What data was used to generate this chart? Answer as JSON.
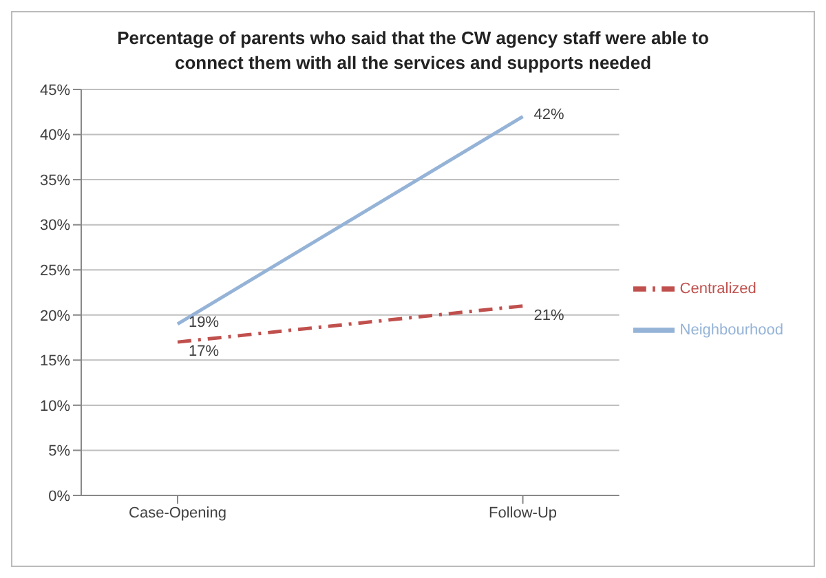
{
  "chart_data": {
    "type": "line",
    "title": "Percentage of parents who said that the CW agency staff were able to connect them with all the services and supports needed",
    "categories": [
      "Case-Opening",
      "Follow-Up"
    ],
    "series": [
      {
        "name": "Neighbourhood",
        "color": "#95b3d7",
        "values": [
          19,
          42
        ],
        "value_labels": [
          "19%",
          "42%"
        ],
        "line_style": "solid"
      },
      {
        "name": "Centralized",
        "color": "#c0504d",
        "values": [
          17,
          21
        ],
        "value_labels": [
          "17%",
          "21%"
        ],
        "line_style": "dashed"
      }
    ],
    "ylim": [
      0,
      45
    ],
    "yticks": [
      {
        "value": 0,
        "label": "0%"
      },
      {
        "value": 5,
        "label": "5%"
      },
      {
        "value": 10,
        "label": "10%"
      },
      {
        "value": 15,
        "label": "15%"
      },
      {
        "value": 20,
        "label": "20%"
      },
      {
        "value": 25,
        "label": "25%"
      },
      {
        "value": 30,
        "label": "30%"
      },
      {
        "value": 35,
        "label": "35%"
      },
      {
        "value": 40,
        "label": "40%"
      },
      {
        "value": 45,
        "label": "45%"
      }
    ],
    "grid": "y",
    "legend": "right",
    "marker": "none"
  }
}
